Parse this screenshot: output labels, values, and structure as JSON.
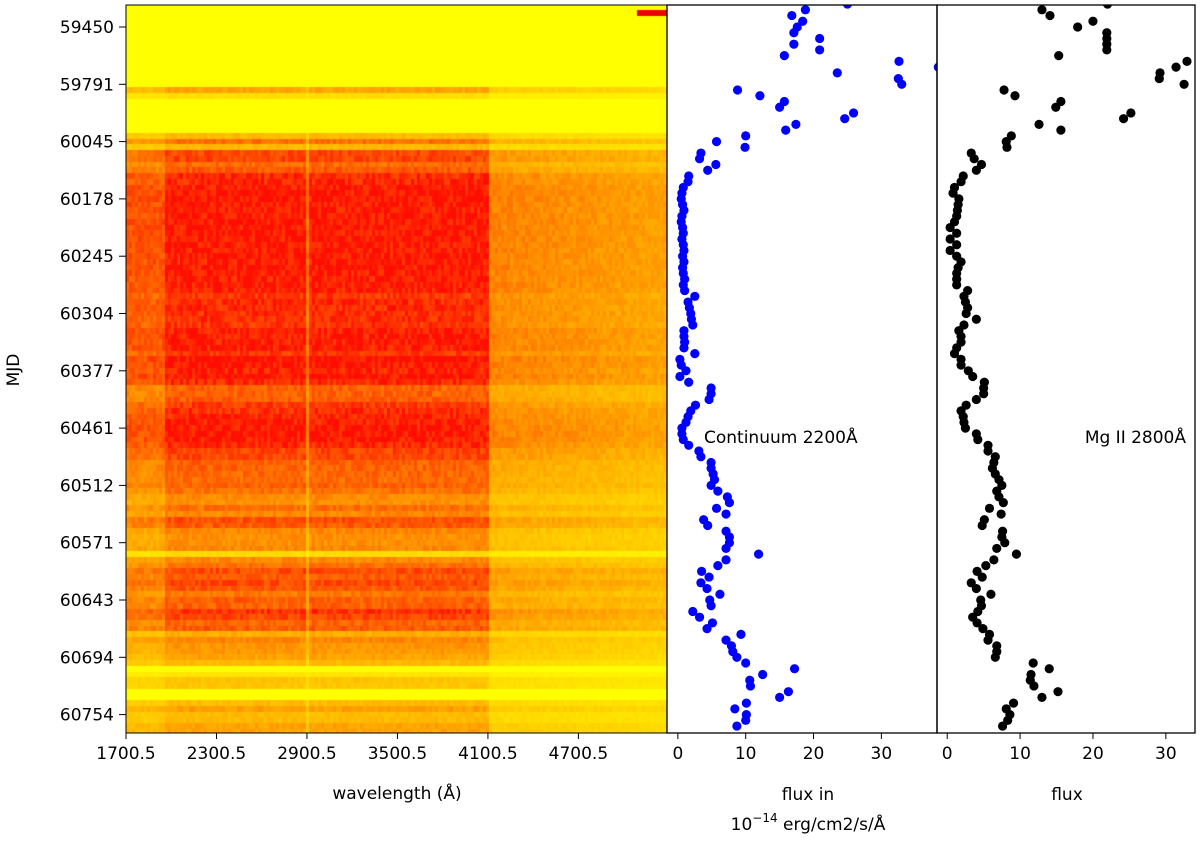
{
  "chart_data": [
    {
      "type": "heatmap",
      "colormap": "yellow-to-red (autumn, reversed)",
      "xlabel": "wavelength (Å)",
      "ylabel": "MJD",
      "xlim": [
        1700.5,
        5288
      ],
      "xticks": [
        "1700.5",
        "2300.5",
        "2900.5",
        "3500.5",
        "4100.5",
        "4700.5"
      ],
      "xtick_values": [
        1700.5,
        2300.5,
        2900.5,
        3500.5,
        4100.5,
        4700.5
      ],
      "yticks": [
        "59450",
        "59791",
        "60045",
        "60178",
        "60245",
        "60304",
        "60377",
        "60461",
        "60512",
        "60571",
        "60643",
        "60694",
        "60754"
      ],
      "ytick_spectrum_index": [
        4,
        14,
        24,
        34,
        44,
        54,
        64,
        74,
        84,
        94,
        104,
        114,
        124
      ],
      "y_range_spectrum_index": [
        0,
        127
      ]
    },
    {
      "type": "scatter",
      "annotation": "Continuum 2200Å",
      "xlabel_line1": "flux in",
      "xlabel_line2_base": "10",
      "xlabel_line2_exp": "−14",
      "xlabel_line2_rest": " erg/cm2/s/Å",
      "xlim": [
        -1.6,
        38.2
      ],
      "xticks": [
        "0",
        "10",
        "20",
        "30"
      ],
      "xtick_values": [
        0,
        10,
        20,
        30
      ],
      "color": "#0000ff",
      "flux_by_spectrum_index": [
        25,
        18.8,
        16.8,
        18.4,
        17.6,
        17.1,
        20.9,
        17.1,
        20.9,
        15.7,
        32.6,
        38.4,
        23.5,
        32.5,
        33,
        8.8,
        12.1,
        15.7,
        15,
        25.9,
        24.6,
        17.4,
        15.9,
        10,
        5.7,
        9.9,
        3.4,
        3.2,
        5.6,
        4.4,
        1.6,
        1.5,
        0.8,
        0.6,
        0.5,
        0.7,
        0.9,
        0.6,
        0.5,
        0.7,
        0.8,
        0.6,
        0.8,
        0.9,
        0.7,
        0.9,
        0.7,
        0.8,
        1.0,
        0.8,
        1.0,
        2.5,
        1.5,
        1.7,
        1.9,
        2.0,
        2.2,
        0.9,
        0.9,
        1.0,
        0.9,
        2.5,
        0.3,
        0.5,
        1.2,
        0.3,
        1.6,
        4.9,
        4.9,
        4.6,
        2.6,
        1.9,
        1.5,
        1.2,
        0.6,
        0.6,
        0.8,
        1.6,
        3.1,
        3.4,
        4.9,
        4.9,
        5.2,
        5.4,
        4.9,
        5.9,
        7.3,
        7.6,
        5.7,
        7.1,
        3.8,
        4.4,
        7.1,
        7.6,
        7.6,
        7.1,
        11.9,
        7.1,
        5.9,
        3.5,
        4.6,
        3.4,
        4.3,
        6.2,
        4.7,
        4.9,
        2.2,
        3.2,
        5.1,
        4.3,
        9.3,
        7.1,
        7.9,
        8.1,
        8.7,
        10,
        17.2,
        12.5,
        10.6,
        10.7,
        16.3,
        15,
        10.1,
        8.4,
        10.1,
        10,
        8.7
      ]
    },
    {
      "type": "scatter",
      "annotation": "Mg II 2800Å",
      "xlabel": "flux",
      "xlim": [
        -1.4,
        34
      ],
      "xticks": [
        "0",
        "10",
        "20",
        "30"
      ],
      "xtick_values": [
        0,
        10,
        20,
        30
      ],
      "color": "#000000",
      "flux_by_spectrum_index": [
        22,
        13,
        14.1,
        20,
        17.9,
        21.9,
        21.9,
        21.9,
        21.9,
        15.3,
        32.9,
        31.4,
        29.2,
        29.1,
        32.5,
        7.8,
        9.3,
        15.6,
        14.9,
        25.2,
        24.2,
        12.6,
        15.6,
        8.8,
        8.1,
        8.2,
        3.3,
        3.7,
        4.7,
        4,
        2.2,
        1.9,
        1.0,
        0.8,
        1.6,
        1.5,
        1.4,
        1.3,
        1.0,
        0.4,
        1.3,
        0.4,
        1.3,
        0.4,
        1.3,
        1.9,
        1.5,
        1.3,
        1.3,
        1.3,
        2.8,
        2.3,
        2.5,
        2.8,
        2.6,
        4,
        2.3,
        1.6,
        1.9,
        1.9,
        1.3,
        1.0,
        1.9,
        1.9,
        2.9,
        3.5,
        5.1,
        5,
        5,
        4,
        2.6,
        1.9,
        2.2,
        2.3,
        2.5,
        4,
        4.2,
        5.6,
        5.6,
        6.6,
        6.4,
        6.2,
        6.6,
        7.1,
        7.5,
        6.8,
        7.1,
        7.7,
        5.8,
        7.4,
        5.1,
        4.8,
        7.6,
        7.5,
        7.9,
        6.8,
        9.5,
        6.4,
        5.3,
        4.1,
        4.8,
        3.3,
        4.0,
        6.0,
        4.6,
        4.7,
        4.2,
        3.5,
        4.1,
        4.9,
        5.8,
        5.6,
        6.8,
        6.8,
        6.6,
        11.8,
        14,
        11.5,
        11.4,
        11.9,
        15.2,
        13,
        9.1,
        8.1,
        8.6,
        8.3,
        7.6
      ]
    }
  ]
}
